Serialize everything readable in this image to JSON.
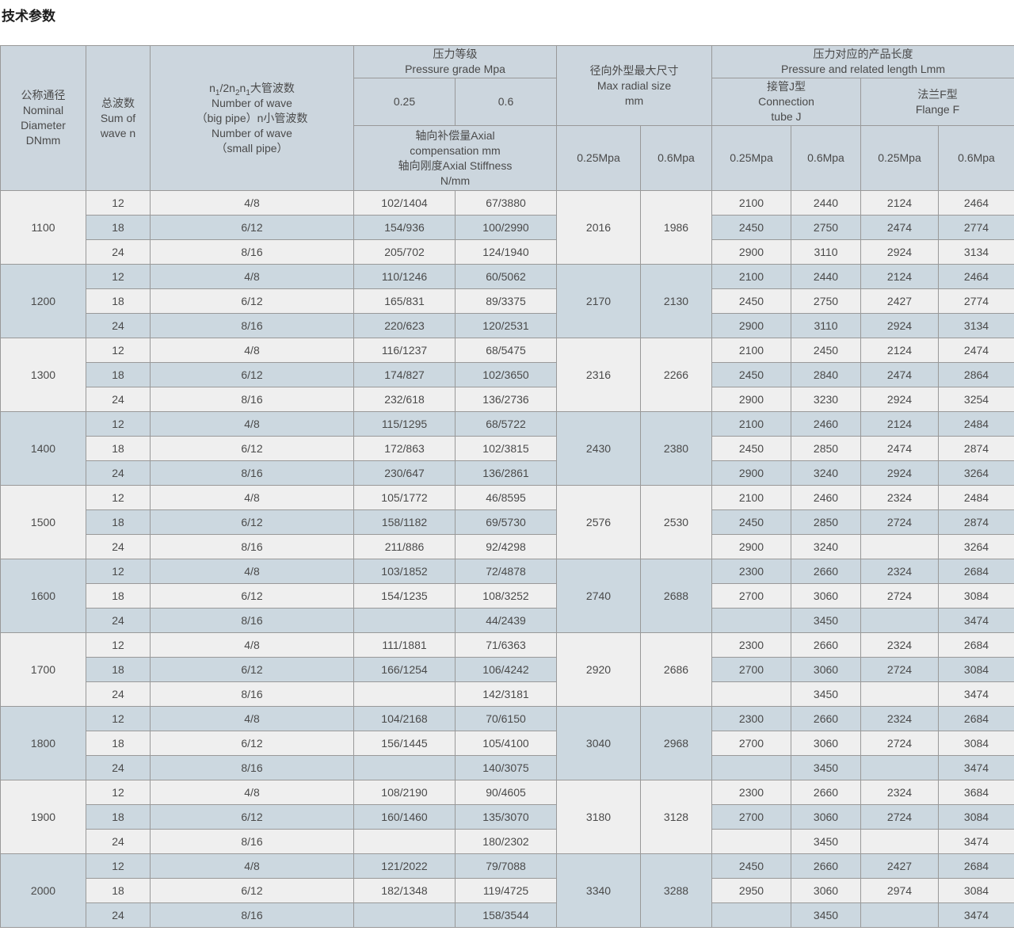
{
  "page": {
    "title": "技术参数"
  },
  "colors": {
    "header_bg": "#ccd6de",
    "row_light": "#efefef",
    "row_dark": "#ccd8e0",
    "border": "#999999",
    "text": "#4a4a4a"
  },
  "table": {
    "headers": {
      "nominal_diameter": "公称通径\nNominal\nDiameter\nDNmm",
      "sum_of_wave": "总波数\nSum of\nwave n",
      "wave_lines": [
        "n{1}/2n{2}n{1}大管波数",
        "Number of wave",
        "（big pipe）n小管波数",
        "Number of wave",
        "（small pipe）"
      ],
      "pressure_grade": "压力等级\nPressure grade Mpa",
      "pressure_025": "0.25",
      "pressure_06": "0.6",
      "axial": "轴向补偿量Axial\ncompensation mm\n轴向刚度Axial Stiffness\nN/mm",
      "max_radial": "径向外型最大尺寸\nMax radial size\nmm",
      "radial_025": "0.25Mpa",
      "radial_06": "0.6Mpa",
      "length": "压力对应的产品长度\nPressure and related length Lmm",
      "connection_j": "接管J型\nConnection\ntube J",
      "flange_f": "法兰F型\nFlange F",
      "j_025": "0.25Mpa",
      "j_06": "0.6Mpa",
      "f_025": "0.25Mpa",
      "f_06": "0.6Mpa"
    },
    "groups": [
      {
        "dn": "1100",
        "radial_025": "2016",
        "radial_06": "1986",
        "rows": [
          [
            "12",
            "4/8",
            "102/1404",
            "67/3880",
            "2100",
            "2440",
            "2124",
            "2464"
          ],
          [
            "18",
            "6/12",
            "154/936",
            "100/2990",
            "2450",
            "2750",
            "2474",
            "2774"
          ],
          [
            "24",
            "8/16",
            "205/702",
            "124/1940",
            "2900",
            "3110",
            "2924",
            "3134"
          ]
        ]
      },
      {
        "dn": "1200",
        "radial_025": "2170",
        "radial_06": "2130",
        "rows": [
          [
            "12",
            "4/8",
            "110/1246",
            "60/5062",
            "2100",
            "2440",
            "2124",
            "2464"
          ],
          [
            "18",
            "6/12",
            "165/831",
            "89/3375",
            "2450",
            "2750",
            "2427",
            "2774"
          ],
          [
            "24",
            "8/16",
            "220/623",
            "120/2531",
            "2900",
            "3110",
            "2924",
            "3134"
          ]
        ]
      },
      {
        "dn": "1300",
        "radial_025": "2316",
        "radial_06": "2266",
        "rows": [
          [
            "12",
            "4/8",
            "116/1237",
            "68/5475",
            "2100",
            "2450",
            "2124",
            "2474"
          ],
          [
            "18",
            "6/12",
            "174/827",
            "102/3650",
            "2450",
            "2840",
            "2474",
            "2864"
          ],
          [
            "24",
            "8/16",
            "232/618",
            "136/2736",
            "2900",
            "3230",
            "2924",
            "3254"
          ]
        ]
      },
      {
        "dn": "1400",
        "radial_025": "2430",
        "radial_06": "2380",
        "rows": [
          [
            "12",
            "4/8",
            "115/1295",
            "68/5722",
            "2100",
            "2460",
            "2124",
            "2484"
          ],
          [
            "18",
            "6/12",
            "172/863",
            "102/3815",
            "2450",
            "2850",
            "2474",
            "2874"
          ],
          [
            "24",
            "8/16",
            "230/647",
            "136/2861",
            "2900",
            "3240",
            "2924",
            "3264"
          ]
        ]
      },
      {
        "dn": "1500",
        "radial_025": "2576",
        "radial_06": "2530",
        "rows": [
          [
            "12",
            "4/8",
            "105/1772",
            "46/8595",
            "2100",
            "2460",
            "2324",
            "2484"
          ],
          [
            "18",
            "6/12",
            "158/1182",
            "69/5730",
            "2450",
            "2850",
            "2724",
            "2874"
          ],
          [
            "24",
            "8/16",
            "211/886",
            "92/4298",
            "2900",
            "3240",
            "",
            "3264"
          ]
        ]
      },
      {
        "dn": "1600",
        "radial_025": "2740",
        "radial_06": "2688",
        "rows": [
          [
            "12",
            "4/8",
            "103/1852",
            "72/4878",
            "2300",
            "2660",
            "2324",
            "2684"
          ],
          [
            "18",
            "6/12",
            "154/1235",
            "108/3252",
            "2700",
            "3060",
            "2724",
            "3084"
          ],
          [
            "24",
            "8/16",
            "",
            "44/2439",
            "",
            "3450",
            "",
            "3474"
          ]
        ]
      },
      {
        "dn": "1700",
        "radial_025": "2920",
        "radial_06": "2686",
        "rows": [
          [
            "12",
            "4/8",
            "111/1881",
            "71/6363",
            "2300",
            "2660",
            "2324",
            "2684"
          ],
          [
            "18",
            "6/12",
            "166/1254",
            "106/4242",
            "2700",
            "3060",
            "2724",
            "3084"
          ],
          [
            "24",
            "8/16",
            "",
            "142/3181",
            "",
            "3450",
            "",
            "3474"
          ]
        ]
      },
      {
        "dn": "1800",
        "radial_025": "3040",
        "radial_06": "2968",
        "rows": [
          [
            "12",
            "4/8",
            "104/2168",
            "70/6150",
            "2300",
            "2660",
            "2324",
            "2684"
          ],
          [
            "18",
            "6/12",
            "156/1445",
            "105/4100",
            "2700",
            "3060",
            "2724",
            "3084"
          ],
          [
            "24",
            "8/16",
            "",
            "140/3075",
            "",
            "3450",
            "",
            "3474"
          ]
        ]
      },
      {
        "dn": "1900",
        "radial_025": "3180",
        "radial_06": "3128",
        "rows": [
          [
            "12",
            "4/8",
            "108/2190",
            "90/4605",
            "2300",
            "2660",
            "2324",
            "3684"
          ],
          [
            "18",
            "6/12",
            "160/1460",
            "135/3070",
            "2700",
            "3060",
            "2724",
            "3084"
          ],
          [
            "24",
            "8/16",
            "",
            "180/2302",
            "",
            "3450",
            "",
            "3474"
          ]
        ]
      },
      {
        "dn": "2000",
        "radial_025": "3340",
        "radial_06": "3288",
        "rows": [
          [
            "12",
            "4/8",
            "121/2022",
            "79/7088",
            "2450",
            "2660",
            "2427",
            "2684"
          ],
          [
            "18",
            "6/12",
            "182/1348",
            "119/4725",
            "2950",
            "3060",
            "2974",
            "3084"
          ],
          [
            "24",
            "8/16",
            "",
            "158/3544",
            "",
            "3450",
            "",
            "3474"
          ]
        ]
      }
    ]
  }
}
